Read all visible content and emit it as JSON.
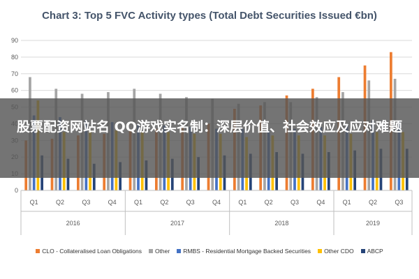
{
  "chart_data": {
    "type": "bar",
    "title": "Chart 3: Top 5 FVC Activity types (Total Debt Securities Issued €bn)",
    "categories": [
      "Q1",
      "Q2",
      "Q3",
      "Q4",
      "Q1",
      "Q2",
      "Q3",
      "Q4",
      "Q1",
      "Q2",
      "Q3",
      "Q4",
      "Q1",
      "Q2",
      "Q3"
    ],
    "year_groups": [
      {
        "label": "2016",
        "count": 4
      },
      {
        "label": "2017",
        "count": 4
      },
      {
        "label": "2018",
        "count": 4
      },
      {
        "label": "2019",
        "count": 3
      }
    ],
    "ylim": [
      0,
      90
    ],
    "yticks": [
      0,
      10,
      20,
      30,
      40,
      50,
      60,
      70,
      80,
      90
    ],
    "grid": true,
    "legend_position": "bottom",
    "series": [
      {
        "name": "CLO - Collateralised Loan Obligations",
        "color": "#ed7d31",
        "values": [
          30,
          31,
          33,
          34,
          36,
          37,
          38,
          40,
          49,
          51,
          57,
          61,
          68,
          75,
          83
        ]
      },
      {
        "name": "Other",
        "color": "#a5a5a5",
        "values": [
          68,
          61,
          58,
          59,
          61,
          58,
          56,
          55,
          52,
          53,
          53,
          56,
          59,
          66,
          67
        ]
      },
      {
        "name": "RMBS - Residential Mortgage Backed Securities",
        "color": "#4472c4",
        "values": [
          45,
          44,
          42,
          41,
          40,
          39,
          38,
          37,
          37,
          36,
          37,
          38,
          40,
          42,
          42
        ]
      },
      {
        "name": "Other CDO",
        "color": "#ffc000",
        "values": [
          54,
          35,
          36,
          36,
          35,
          35,
          34,
          34,
          32,
          33,
          33,
          33,
          34,
          35,
          35
        ]
      },
      {
        "name": "ABCP",
        "color": "#264478",
        "values": [
          21,
          19,
          16,
          17,
          18,
          19,
          20,
          21,
          22,
          23,
          22,
          23,
          24,
          25,
          25
        ]
      }
    ]
  },
  "overlay": {
    "text": "股票配资网站名 QQ游戏实名制：深层价值、社会效应及应对难题"
  }
}
